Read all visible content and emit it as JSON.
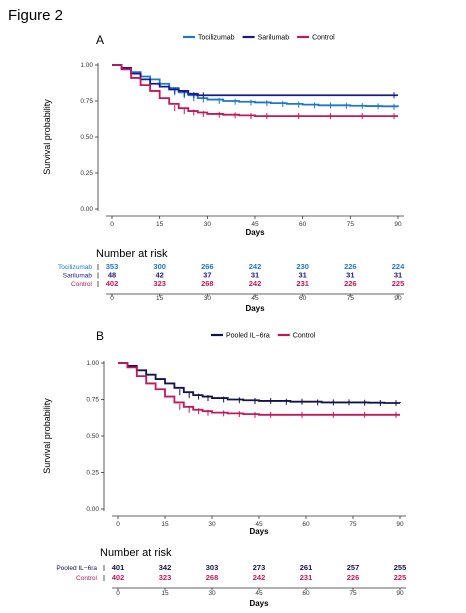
{
  "figure_title": "Figure 2",
  "chart_data": [
    {
      "panel": "A",
      "type": "line",
      "xlabel": "Days",
      "ylabel": "Survival probability",
      "xticks": [
        0,
        15,
        30,
        45,
        60,
        75,
        90
      ],
      "xtick_labels": [
        "0",
        "15",
        "30",
        "45",
        "60",
        "75",
        "90"
      ],
      "yticks": [
        0,
        0.25,
        0.5,
        0.75,
        1.0
      ],
      "ytick_labels": [
        "0.00",
        "0.25",
        "0.50",
        "0.75",
        "1.00"
      ],
      "xlim": [
        0,
        90
      ],
      "ylim": [
        0,
        1
      ],
      "legend_position": "top",
      "series": [
        {
          "name": "Tocilizumab",
          "color": "#1f77c8",
          "x": [
            0,
            3,
            6,
            9,
            12,
            15,
            18,
            21,
            24,
            27,
            30,
            35,
            40,
            45,
            50,
            55,
            60,
            65,
            70,
            75,
            80,
            85,
            90
          ],
          "y": [
            1.0,
            0.98,
            0.95,
            0.92,
            0.9,
            0.87,
            0.84,
            0.81,
            0.79,
            0.77,
            0.76,
            0.75,
            0.745,
            0.74,
            0.735,
            0.73,
            0.725,
            0.72,
            0.72,
            0.717,
            0.715,
            0.713,
            0.71
          ]
        },
        {
          "name": "Sarilumab",
          "color": "#1a1a8c",
          "x": [
            0,
            3,
            6,
            9,
            12,
            15,
            18,
            21,
            24,
            27,
            30,
            90
          ],
          "y": [
            1.0,
            0.98,
            0.94,
            0.9,
            0.87,
            0.85,
            0.83,
            0.82,
            0.8,
            0.79,
            0.79,
            0.79
          ]
        },
        {
          "name": "Control",
          "color": "#c2185b",
          "x": [
            0,
            3,
            6,
            9,
            12,
            15,
            18,
            21,
            24,
            27,
            30,
            35,
            40,
            45,
            50,
            60,
            70,
            80,
            90
          ],
          "y": [
            1.0,
            0.97,
            0.91,
            0.86,
            0.82,
            0.77,
            0.73,
            0.7,
            0.68,
            0.67,
            0.66,
            0.655,
            0.65,
            0.645,
            0.645,
            0.645,
            0.645,
            0.645,
            0.645
          ]
        }
      ],
      "risk_table": {
        "title": "Number at risk",
        "xlabel": "Days",
        "rows": [
          {
            "name": "Tocilizumab",
            "color": "#1f77c8",
            "values": [
              "353",
              "300",
              "266",
              "242",
              "230",
              "226",
              "224"
            ]
          },
          {
            "name": "Sarilumab",
            "color": "#1a1a8c",
            "values": [
              "48",
              "42",
              "37",
              "31",
              "31",
              "31",
              "31"
            ]
          },
          {
            "name": "Control",
            "color": "#c2185b",
            "values": [
              "402",
              "323",
              "268",
              "242",
              "231",
              "226",
              "225"
            ]
          }
        ]
      }
    },
    {
      "panel": "B",
      "type": "line",
      "xlabel": "Days",
      "ylabel": "Survival probability",
      "xticks": [
        0,
        15,
        30,
        45,
        60,
        75,
        90
      ],
      "xtick_labels": [
        "0",
        "15",
        "30",
        "45",
        "60",
        "75",
        "90"
      ],
      "yticks": [
        0,
        0.25,
        0.5,
        0.75,
        1.0
      ],
      "ytick_labels": [
        "0.00",
        "0.25",
        "0.50",
        "0.75",
        "1.00"
      ],
      "xlim": [
        0,
        90
      ],
      "ylim": [
        0,
        1
      ],
      "legend_position": "top",
      "series": [
        {
          "name": "Pooled IL−6ra",
          "color": "#14124a",
          "x": [
            0,
            3,
            6,
            9,
            12,
            15,
            18,
            21,
            24,
            27,
            30,
            35,
            40,
            45,
            50,
            55,
            60,
            65,
            70,
            75,
            80,
            85,
            90
          ],
          "y": [
            1.0,
            0.98,
            0.95,
            0.92,
            0.89,
            0.86,
            0.83,
            0.8,
            0.78,
            0.77,
            0.76,
            0.75,
            0.745,
            0.74,
            0.74,
            0.735,
            0.735,
            0.73,
            0.73,
            0.73,
            0.728,
            0.726,
            0.725
          ]
        },
        {
          "name": "Control",
          "color": "#c2185b",
          "x": [
            0,
            3,
            6,
            9,
            12,
            15,
            18,
            21,
            24,
            27,
            30,
            35,
            40,
            45,
            50,
            60,
            70,
            80,
            90
          ],
          "y": [
            1.0,
            0.97,
            0.91,
            0.86,
            0.82,
            0.77,
            0.73,
            0.7,
            0.68,
            0.67,
            0.66,
            0.655,
            0.65,
            0.645,
            0.645,
            0.645,
            0.645,
            0.645,
            0.645
          ]
        }
      ],
      "risk_table": {
        "title": "Number at risk",
        "xlabel": "Days",
        "rows": [
          {
            "name": "Pooled IL−6ra",
            "color": "#14124a",
            "values": [
              "401",
              "342",
              "303",
              "273",
              "261",
              "257",
              "255"
            ]
          },
          {
            "name": "Control",
            "color": "#c2185b",
            "values": [
              "402",
              "323",
              "268",
              "242",
              "231",
              "226",
              "225"
            ]
          }
        ]
      }
    }
  ]
}
